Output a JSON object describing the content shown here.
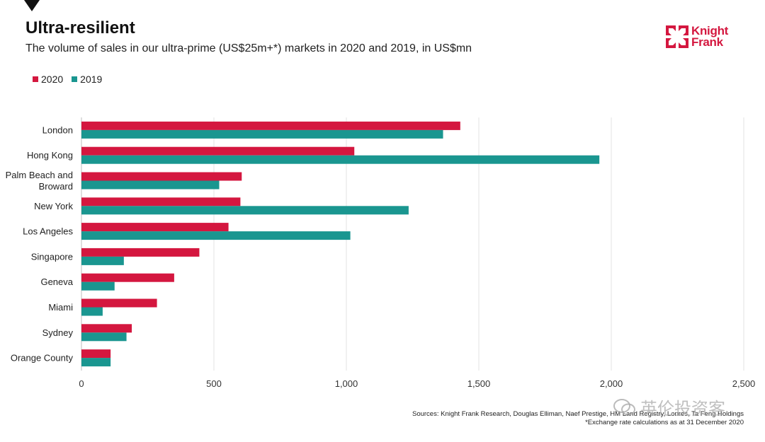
{
  "header": {
    "title": "Ultra-resilient",
    "subtitle": "The volume of sales in our ultra-prime (US$25m+*) markets in 2020 and 2019, in US$mn"
  },
  "logo": {
    "line1": "Knight",
    "line2": "Frank",
    "color": "#d4173f"
  },
  "legend": [
    {
      "label": "2020",
      "color": "#d4173f"
    },
    {
      "label": "2019",
      "color": "#1a9690"
    }
  ],
  "chart_data": {
    "type": "bar",
    "orientation": "horizontal",
    "title": "Ultra-resilient",
    "subtitle": "The volume of sales in our ultra-prime (US$25m+*) markets in 2020 and 2019, in US$mn",
    "categories": [
      "London",
      "Hong Kong",
      "Palm Beach and Broward",
      "New York",
      "Los Angeles",
      "Singapore",
      "Geneva",
      "Miami",
      "Sydney",
      "Orange County"
    ],
    "category_lines": [
      [
        "London"
      ],
      [
        "Hong Kong"
      ],
      [
        "Palm Beach and",
        "Broward"
      ],
      [
        "New York"
      ],
      [
        "Los Angeles"
      ],
      [
        "Singapore"
      ],
      [
        "Geneva"
      ],
      [
        "Miami"
      ],
      [
        "Sydney"
      ],
      [
        "Orange County"
      ]
    ],
    "series": [
      {
        "name": "2020",
        "color": "#d4173f",
        "values": [
          1430,
          1030,
          605,
          600,
          555,
          445,
          350,
          285,
          190,
          110
        ]
      },
      {
        "name": "2019",
        "color": "#1a9690",
        "values": [
          1365,
          1955,
          520,
          1235,
          1015,
          160,
          125,
          80,
          170,
          110
        ]
      }
    ],
    "xlim": [
      0,
      2500
    ],
    "xticks": [
      0,
      500,
      1000,
      1500,
      2000,
      2500
    ],
    "xtick_labels": [
      "0",
      "500",
      "1,000",
      "1,500",
      "2,000",
      "2,500"
    ],
    "grid": true,
    "legend_position": "top-left",
    "xlabel": "",
    "ylabel": ""
  },
  "footer": {
    "source": "Sources: Knight Frank Research, Douglas Elliman, Naef Prestige, HM Land Registry, Lonres, Ta Feng Holdings",
    "note": "*Exchange rate calculations as at 31 December 2020"
  },
  "watermark": {
    "text": "英伦投资客"
  }
}
